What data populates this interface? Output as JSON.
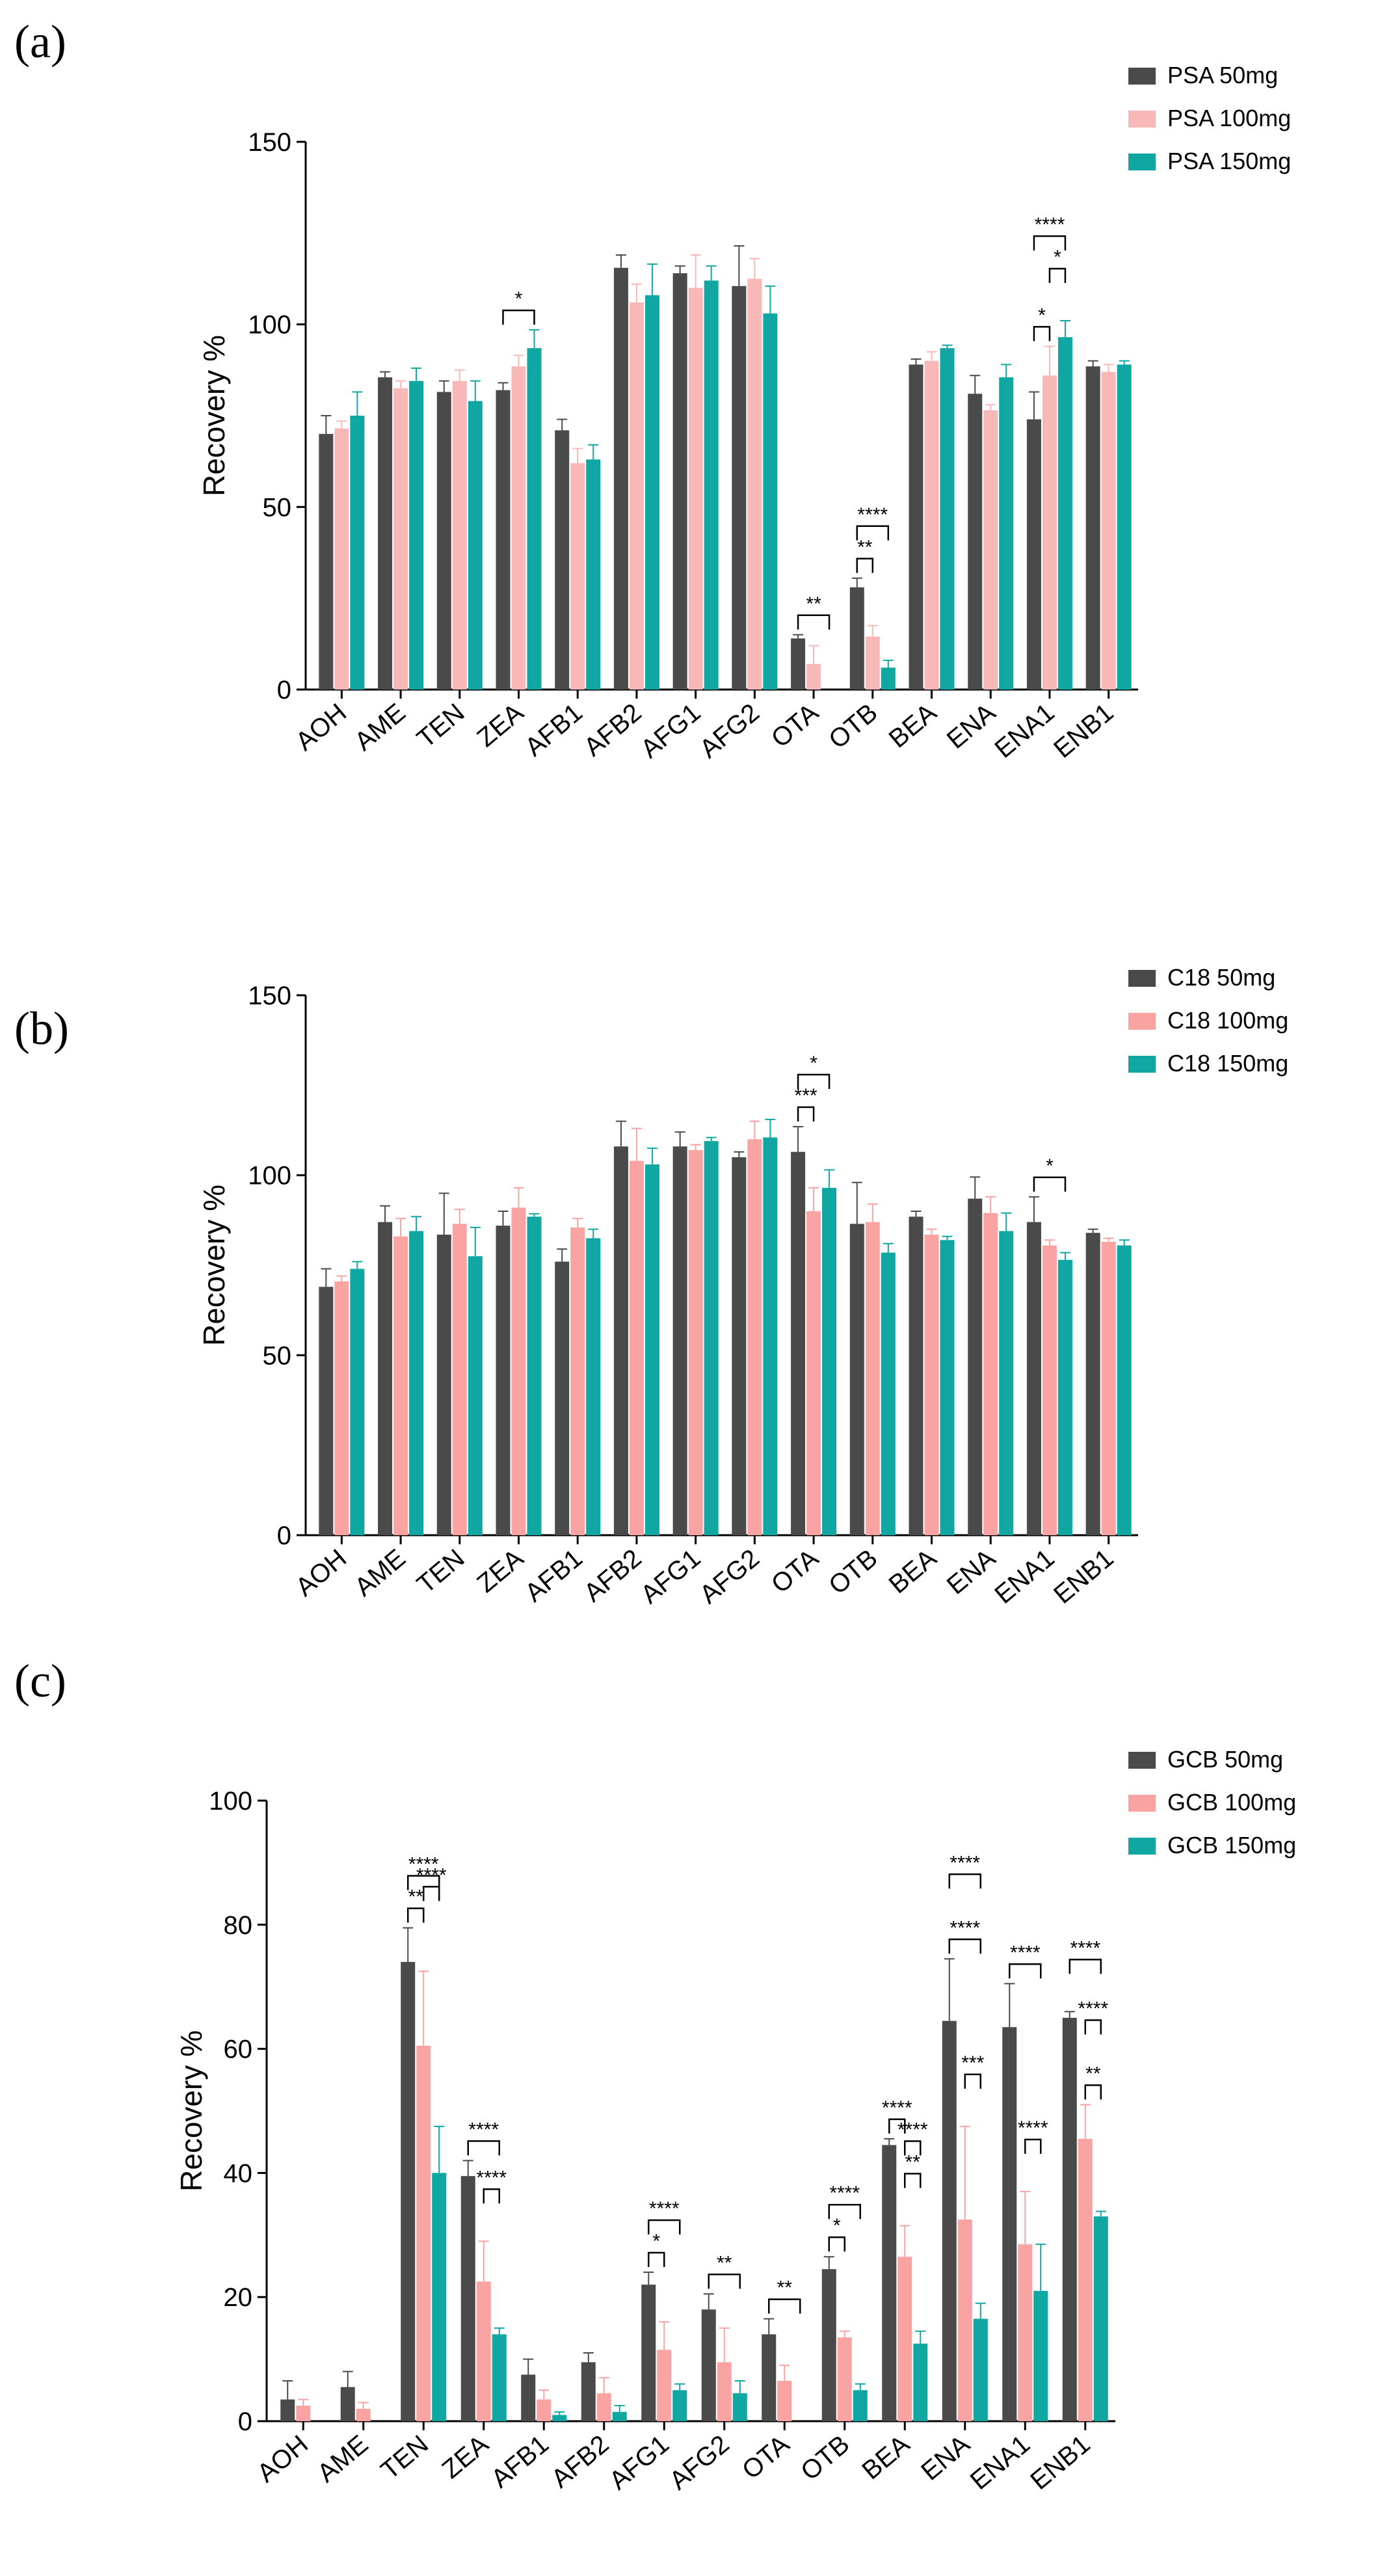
{
  "chart_data": [
    {
      "type": "bar",
      "panel_label": "(a)",
      "title": "",
      "xlabel": "",
      "ylabel": "Recovery %",
      "ylim": [
        0,
        150
      ],
      "yticks": [
        0,
        50,
        100,
        150
      ],
      "grid": false,
      "legend_position": "top-right",
      "categories": [
        "AOH",
        "AME",
        "TEN",
        "ZEA",
        "AFB1",
        "AFB2",
        "AFG1",
        "AFG2",
        "OTA",
        "OTB",
        "BEA",
        "ENA",
        "ENA1",
        "ENB1"
      ],
      "series": [
        {
          "name": "PSA 50mg",
          "color": "#4a4a4a",
          "values": [
            70,
            85.5,
            81.5,
            82,
            71,
            115.5,
            114,
            110.5,
            14,
            28,
            89,
            81,
            74,
            88.5
          ],
          "errors": [
            5,
            1.5,
            3,
            2,
            3,
            3.5,
            2,
            11,
            1,
            2.5,
            1.5,
            5,
            7.5,
            1.5
          ]
        },
        {
          "name": "PSA 100mg",
          "color": "#f9b8b8",
          "values": [
            71.5,
            82.5,
            84.5,
            88.5,
            62,
            106,
            110,
            112.5,
            7,
            14.5,
            90,
            76.5,
            86,
            87
          ],
          "errors": [
            2,
            2,
            3,
            3,
            4,
            5,
            9,
            5.5,
            5,
            3,
            2.5,
            1.5,
            8,
            2
          ]
        },
        {
          "name": "PSA 150mg",
          "color": "#10a6a2",
          "values": [
            75,
            84.5,
            79,
            93.5,
            63,
            108,
            112,
            103,
            0,
            6,
            93.5,
            85.5,
            96.5,
            89
          ],
          "errors": [
            6.5,
            3.5,
            5.5,
            5,
            4,
            8.5,
            4,
            7.5,
            0,
            2,
            0.8,
            3.5,
            4.5,
            1
          ]
        }
      ],
      "annotations": [
        {
          "category": "ZEA",
          "from": 0,
          "to": 2,
          "label": "*"
        },
        {
          "category": "OTA",
          "from": 0,
          "to": 2,
          "label": "**"
        },
        {
          "category": "OTB",
          "from": 0,
          "to": 1,
          "label": "**"
        },
        {
          "category": "OTB",
          "from": 0,
          "to": 2,
          "label": "****"
        },
        {
          "category": "ENA1",
          "from": 0,
          "to": 1,
          "label": "*"
        },
        {
          "category": "ENA1",
          "from": 1,
          "to": 2,
          "label": "*"
        },
        {
          "category": "ENA1",
          "from": 0,
          "to": 2,
          "label": "****"
        }
      ]
    },
    {
      "type": "bar",
      "panel_label": "(b)",
      "title": "",
      "xlabel": "",
      "ylabel": "Recovery %",
      "ylim": [
        0,
        150
      ],
      "yticks": [
        0,
        50,
        100,
        150
      ],
      "grid": false,
      "legend_position": "top-right",
      "categories": [
        "AOH",
        "AME",
        "TEN",
        "ZEA",
        "AFB1",
        "AFB2",
        "AFG1",
        "AFG2",
        "OTA",
        "OTB",
        "BEA",
        "ENA",
        "ENA1",
        "ENB1"
      ],
      "series": [
        {
          "name": "C18 50mg",
          "color": "#4a4a4a",
          "values": [
            69,
            87,
            83.5,
            86,
            76,
            108,
            108,
            105,
            106.5,
            86.5,
            88.5,
            93.5,
            87,
            84
          ],
          "errors": [
            5,
            4.5,
            11.5,
            4,
            3.5,
            7,
            4,
            1.5,
            7,
            11.5,
            1.5,
            6,
            7,
            1
          ]
        },
        {
          "name": "C18 100mg",
          "color": "#f9a3a3",
          "values": [
            70.5,
            83,
            86.5,
            91,
            85.5,
            104,
            107,
            110,
            90,
            87,
            83.5,
            89.5,
            80.5,
            81.5
          ],
          "errors": [
            1.5,
            5,
            4,
            5.5,
            2.5,
            9,
            1.5,
            5,
            6.5,
            5,
            1.5,
            4.5,
            1.5,
            1
          ]
        },
        {
          "name": "C18 150mg",
          "color": "#10a6a2",
          "values": [
            74,
            84.5,
            77.5,
            88.5,
            82.5,
            103,
            109.5,
            110.5,
            96.5,
            78.5,
            82,
            84.5,
            76.5,
            80.5
          ],
          "errors": [
            2,
            4,
            8,
            0.8,
            2.5,
            4.5,
            1,
            5,
            5,
            2.5,
            1,
            5,
            2,
            1.5
          ]
        }
      ],
      "annotations": [
        {
          "category": "OTA",
          "from": 0,
          "to": 1,
          "label": "***"
        },
        {
          "category": "OTA",
          "from": 0,
          "to": 2,
          "label": "*"
        },
        {
          "category": "ENA1",
          "from": 0,
          "to": 2,
          "label": "*"
        }
      ]
    },
    {
      "type": "bar",
      "panel_label": "(c)",
      "title": "",
      "xlabel": "",
      "ylabel": "Recovery %",
      "ylim": [
        0,
        100
      ],
      "yticks": [
        0,
        20,
        40,
        60,
        80,
        100
      ],
      "grid": false,
      "legend_position": "top-right",
      "categories": [
        "AOH",
        "AME",
        "TEN",
        "ZEA",
        "AFB1",
        "AFB2",
        "AFG1",
        "AFG2",
        "OTA",
        "OTB",
        "BEA",
        "ENA",
        "ENA1",
        "ENB1"
      ],
      "series": [
        {
          "name": "GCB 50mg",
          "color": "#4a4a4a",
          "values": [
            3.5,
            5.5,
            74,
            39.5,
            7.5,
            9.5,
            22,
            18,
            14,
            24.5,
            44.5,
            64.5,
            63.5,
            65
          ],
          "errors": [
            3,
            2.5,
            5.5,
            2.5,
            2.5,
            1.5,
            2,
            2.5,
            2.5,
            2,
            1,
            10,
            7,
            1
          ]
        },
        {
          "name": "GCB 100mg",
          "color": "#f9a3a3",
          "values": [
            2.5,
            2,
            60.5,
            22.5,
            3.5,
            4.5,
            11.5,
            9.5,
            6.5,
            13.5,
            26.5,
            32.5,
            28.5,
            45.5
          ],
          "errors": [
            1,
            1,
            12,
            6.5,
            1.5,
            2.5,
            4.5,
            5.5,
            2.5,
            1,
            5,
            15,
            8.5,
            5.5
          ]
        },
        {
          "name": "GCB 150mg",
          "color": "#10a6a2",
          "values": [
            0,
            0,
            40,
            14,
            1,
            1.5,
            5,
            4.5,
            0,
            5,
            12.5,
            16.5,
            21,
            33
          ],
          "errors": [
            0,
            0,
            7.5,
            1,
            0.5,
            1,
            1,
            2,
            0,
            1,
            2,
            2.5,
            7.5,
            0.8
          ]
        }
      ],
      "annotations": [
        {
          "category": "TEN",
          "from": 0,
          "to": 1,
          "label": "**"
        },
        {
          "category": "TEN",
          "from": 0,
          "to": 2,
          "label": "****"
        },
        {
          "category": "TEN",
          "from": 1,
          "to": 2,
          "label": "****"
        },
        {
          "category": "ZEA",
          "from": 0,
          "to": 2,
          "label": "****"
        },
        {
          "category": "ZEA",
          "from": 1,
          "to": 2,
          "label": "****"
        },
        {
          "category": "AFG1",
          "from": 0,
          "to": 1,
          "label": "*"
        },
        {
          "category": "AFG1",
          "from": 0,
          "to": 2,
          "label": "****"
        },
        {
          "category": "AFG2",
          "from": 0,
          "to": 2,
          "label": "**"
        },
        {
          "category": "OTA",
          "from": 0,
          "to": 2,
          "label": "**"
        },
        {
          "category": "OTB",
          "from": 0,
          "to": 1,
          "label": "*"
        },
        {
          "category": "OTB",
          "from": 0,
          "to": 2,
          "label": "****"
        },
        {
          "category": "BEA",
          "from": 0,
          "to": 1,
          "label": "****"
        },
        {
          "category": "BEA",
          "from": 1,
          "to": 2,
          "label": "**"
        },
        {
          "category": "BEA",
          "from": 1,
          "to": 2,
          "label": "****"
        },
        {
          "category": "ENA",
          "from": 0,
          "to": 2,
          "label": "****"
        },
        {
          "category": "ENA",
          "from": 1,
          "to": 2,
          "label": "***"
        },
        {
          "category": "ENA",
          "from": 0,
          "to": 2,
          "label": "****"
        },
        {
          "category": "ENA1",
          "from": 0,
          "to": 2,
          "label": "****"
        },
        {
          "category": "ENA1",
          "from": 1,
          "to": 2,
          "label": "****"
        },
        {
          "category": "ENB1",
          "from": 1,
          "to": 2,
          "label": "**"
        },
        {
          "category": "ENB1",
          "from": 0,
          "to": 2,
          "label": "****"
        },
        {
          "category": "ENB1",
          "from": 1,
          "to": 2,
          "label": "****"
        }
      ]
    }
  ]
}
